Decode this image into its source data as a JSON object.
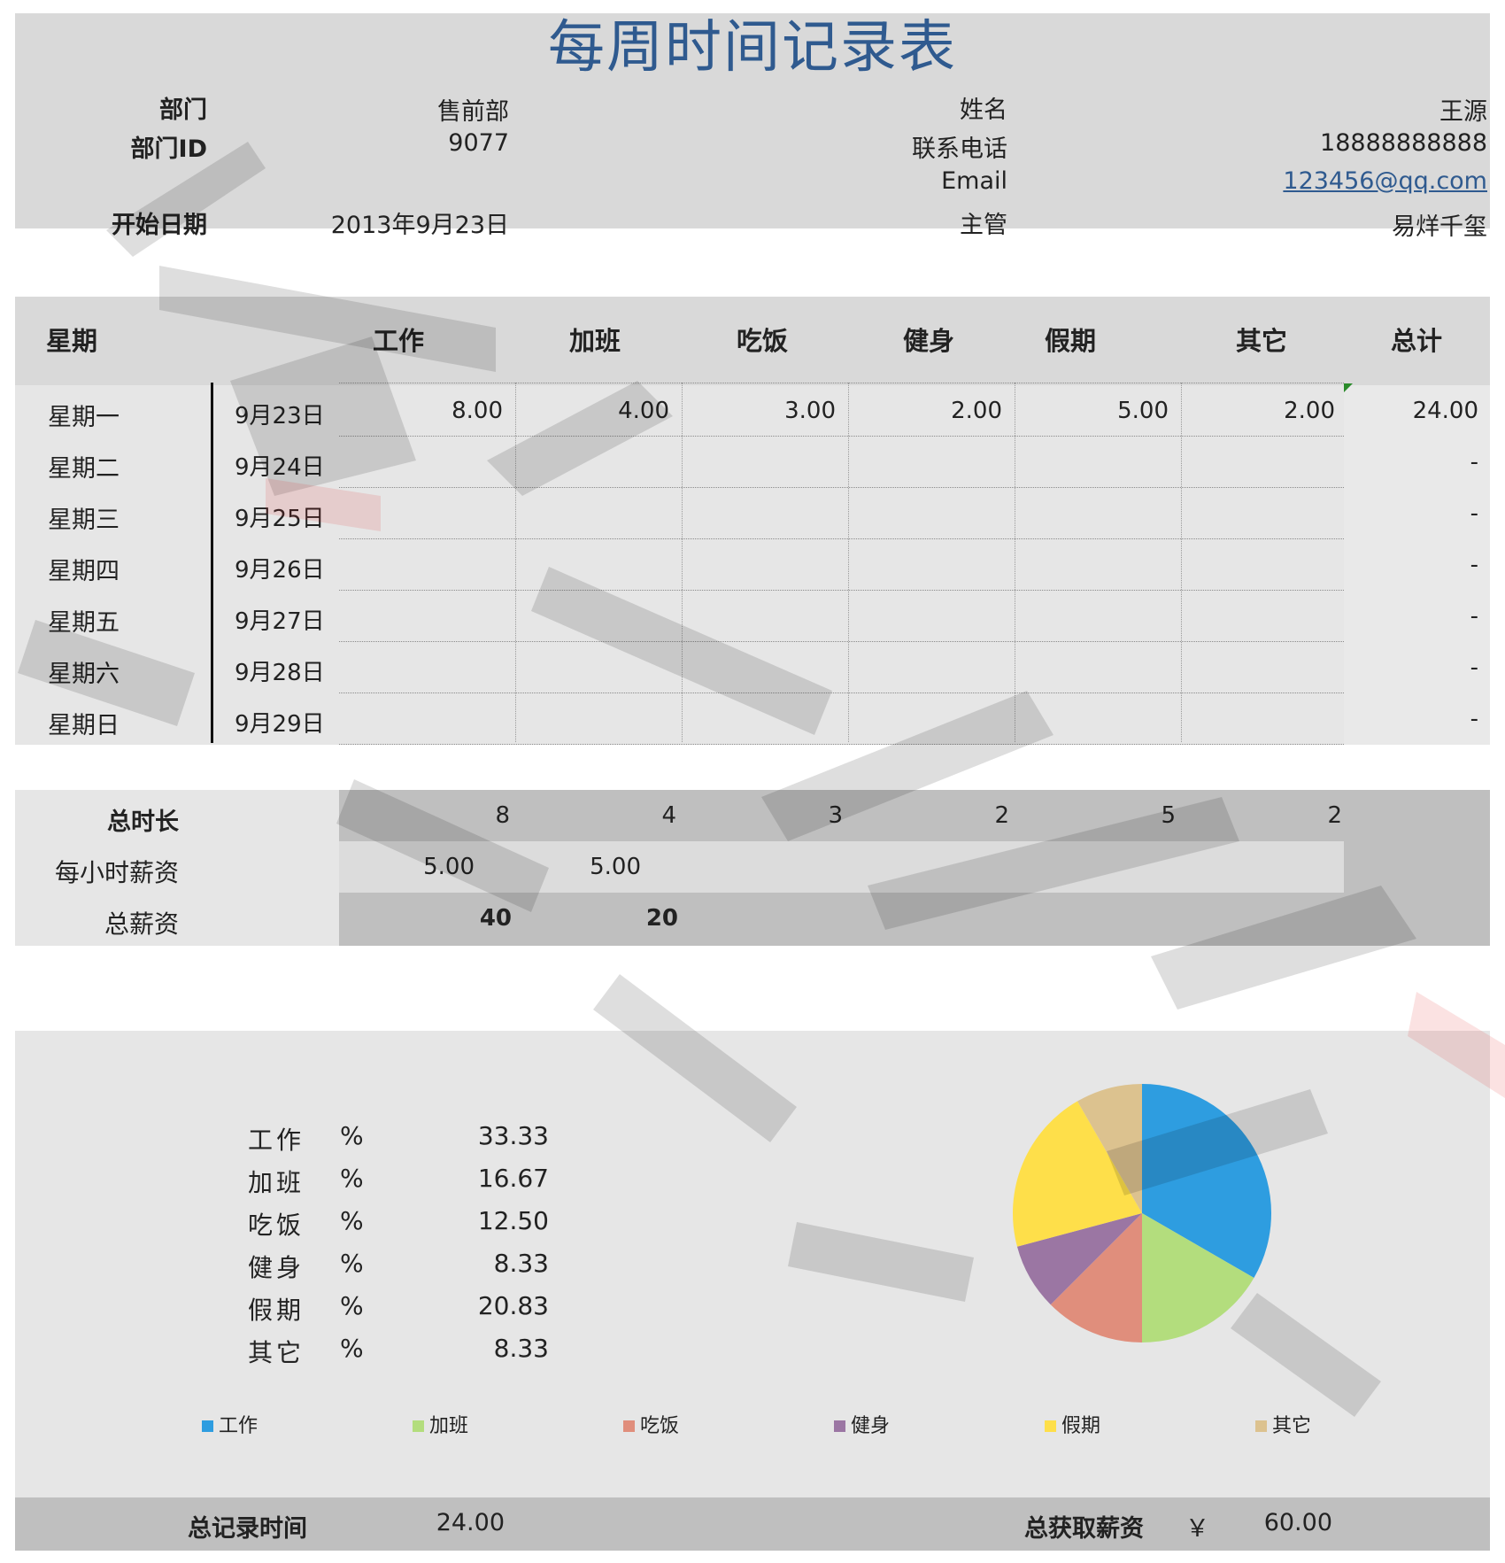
{
  "title": "每周时间记录表",
  "info": {
    "dept_label": "部门",
    "dept_value": "售前部",
    "dept_id_label": "部门ID",
    "dept_id_value": "9077",
    "start_label": "开始日期",
    "start_value": "2013年9月23日",
    "name_label": "姓名",
    "name_value": "王源",
    "phone_label": "联系电话",
    "phone_value": "18888888888",
    "email_label": "Email",
    "email_value": "123456@qq.com",
    "manager_label": "主管",
    "manager_value": "易烊千玺"
  },
  "table": {
    "headers": [
      "星期",
      "工作",
      "加班",
      "吃饭",
      "健身",
      "假期",
      "其它",
      "总计"
    ],
    "rows": [
      {
        "day": "星期一",
        "date": "9月23日",
        "values": [
          "8.00",
          "4.00",
          "3.00",
          "2.00",
          "5.00",
          "2.00"
        ],
        "total": "24.00"
      },
      {
        "day": "星期二",
        "date": "9月24日",
        "values": [
          "",
          "",
          "",
          "",
          "",
          ""
        ],
        "total": "-"
      },
      {
        "day": "星期三",
        "date": "9月25日",
        "values": [
          "",
          "",
          "",
          "",
          "",
          ""
        ],
        "total": "-"
      },
      {
        "day": "星期四",
        "date": "9月26日",
        "values": [
          "",
          "",
          "",
          "",
          "",
          ""
        ],
        "total": "-"
      },
      {
        "day": "星期五",
        "date": "9月27日",
        "values": [
          "",
          "",
          "",
          "",
          "",
          ""
        ],
        "total": "-"
      },
      {
        "day": "星期六",
        "date": "9月28日",
        "values": [
          "",
          "",
          "",
          "",
          "",
          ""
        ],
        "total": "-"
      },
      {
        "day": "星期日",
        "date": "9月29日",
        "values": [
          "",
          "",
          "",
          "",
          "",
          ""
        ],
        "total": "-"
      }
    ]
  },
  "summary": {
    "total_hours_label": "总时长",
    "total_hours": [
      "8",
      "4",
      "3",
      "2",
      "5",
      "2"
    ],
    "hourly_label": "每小时薪资",
    "hourly": [
      "5.00",
      "5.00"
    ],
    "pay_label": "总薪资",
    "pay": [
      "40",
      "20"
    ]
  },
  "percent": {
    "symbol": "%",
    "rows": [
      {
        "name": "工作",
        "value": "33.33"
      },
      {
        "name": "加班",
        "value": "16.67"
      },
      {
        "name": "吃饭",
        "value": "12.50"
      },
      {
        "name": "健身",
        "value": "8.33"
      },
      {
        "name": "假期",
        "value": "20.83"
      },
      {
        "name": "其它",
        "value": "8.33"
      }
    ]
  },
  "chart_data": {
    "type": "pie",
    "categories": [
      "工作",
      "加班",
      "吃饭",
      "健身",
      "假期",
      "其它"
    ],
    "values": [
      8,
      4,
      3,
      2,
      5,
      2
    ],
    "colors": [
      "#2e9de0",
      "#b3dd7d",
      "#e08e7c",
      "#9b76a3",
      "#fedf4a",
      "#dcc28f"
    ],
    "legend": "bottom"
  },
  "footer": {
    "total_time_label": "总记录时间",
    "total_time": "24.00",
    "total_pay_label": "总获取薪资",
    "currency": "￥",
    "total_pay": "60.00"
  }
}
